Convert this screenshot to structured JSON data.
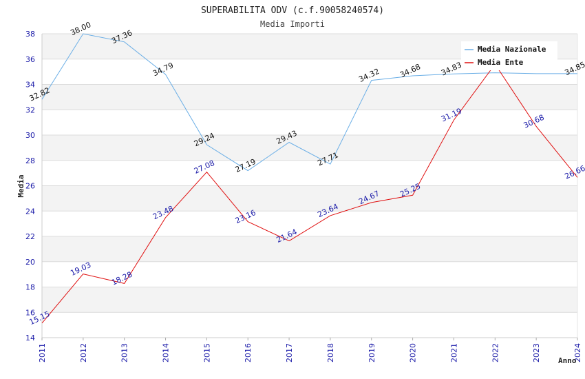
{
  "chart_data": {
    "type": "line",
    "title": "SUPERABILITA ODV (c.f.90058240574)",
    "subtitle": "Media Importi",
    "xlabel": "Anno",
    "ylabel": "Media",
    "ylim": [
      14,
      38
    ],
    "yticks": [
      "14",
      "16",
      "18",
      "20",
      "22",
      "24",
      "26",
      "28",
      "30",
      "32",
      "34",
      "36",
      "38"
    ],
    "categories": [
      "2011",
      "2012",
      "2013",
      "2014",
      "2015",
      "2016",
      "2017",
      "2018",
      "2019",
      "2020",
      "2021",
      "2022",
      "2023",
      "2024"
    ],
    "grid": true,
    "legend_position": "top-right",
    "series": [
      {
        "name": "Media Nazionale",
        "color": "#6aaee6",
        "label_color": "#111111",
        "values": [
          32.82,
          38.0,
          37.36,
          34.79,
          29.24,
          27.19,
          29.43,
          27.71,
          34.32,
          34.68,
          34.83,
          34.92,
          34.85,
          34.85
        ],
        "labels": [
          "32.82",
          "38.00",
          "37.36",
          "34.79",
          "29.24",
          "27.19",
          "29.43",
          "27.71",
          "34.32",
          "34.68",
          "34.83",
          "",
          "",
          "34.85"
        ]
      },
      {
        "name": "Media Ente",
        "color": "#e01010",
        "label_color": "#1a1aa8",
        "values": [
          15.15,
          19.03,
          18.28,
          23.48,
          27.08,
          23.16,
          21.64,
          23.64,
          24.67,
          25.25,
          31.19,
          35.6,
          30.68,
          26.66
        ],
        "labels": [
          "15.15",
          "19.03",
          "18.28",
          "23.48",
          "27.08",
          "23.16",
          "21.64",
          "23.64",
          "24.67",
          "25.25",
          "31.19",
          "",
          "30.68",
          "26.66"
        ]
      }
    ]
  }
}
